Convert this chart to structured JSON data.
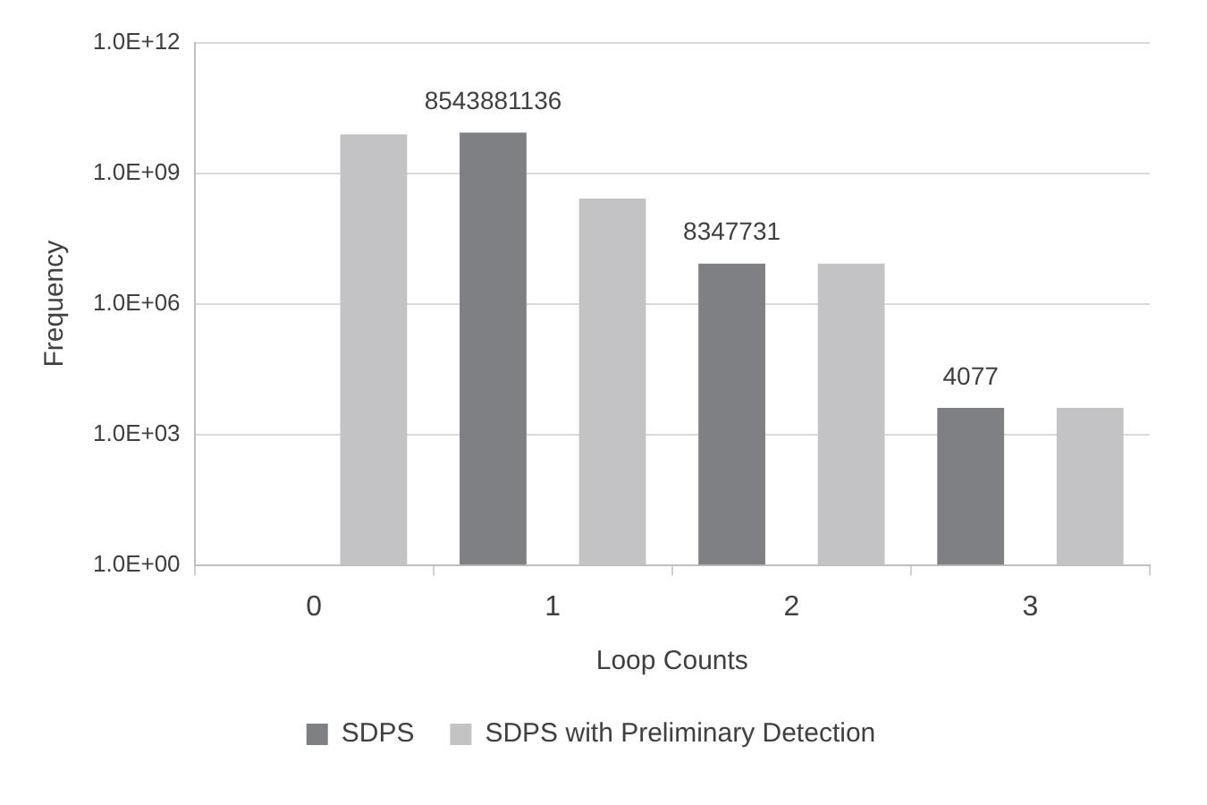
{
  "chart_data": {
    "type": "bar",
    "xlabel": "Loop Counts",
    "ylabel": "Frequency",
    "categories": [
      "0",
      "1",
      "2",
      "3"
    ],
    "series": [
      {
        "name": "SDPS",
        "color": "#7f8084",
        "values": [
          null,
          8543881136,
          8347731,
          4077
        ],
        "value_labels": [
          null,
          "8543881136",
          "8347731",
          "4077"
        ]
      },
      {
        "name": "SDPS with Preliminary Detection",
        "color": "#c3c3c5",
        "values": [
          7800000000,
          260000000,
          8347731,
          4077
        ]
      }
    ],
    "log": "y",
    "ylim": [
      1,
      1000000000000
    ],
    "yticks": [
      {
        "value": 1,
        "label": "1.0E+00"
      },
      {
        "value": 1000,
        "label": "1.0E+03"
      },
      {
        "value": 1000000,
        "label": "1.0E+06"
      },
      {
        "value": 1000000000,
        "label": "1.0E+09"
      },
      {
        "value": 1000000000000,
        "label": "1.0E+12"
      }
    ],
    "grid": "y",
    "legend": "bottom"
  }
}
